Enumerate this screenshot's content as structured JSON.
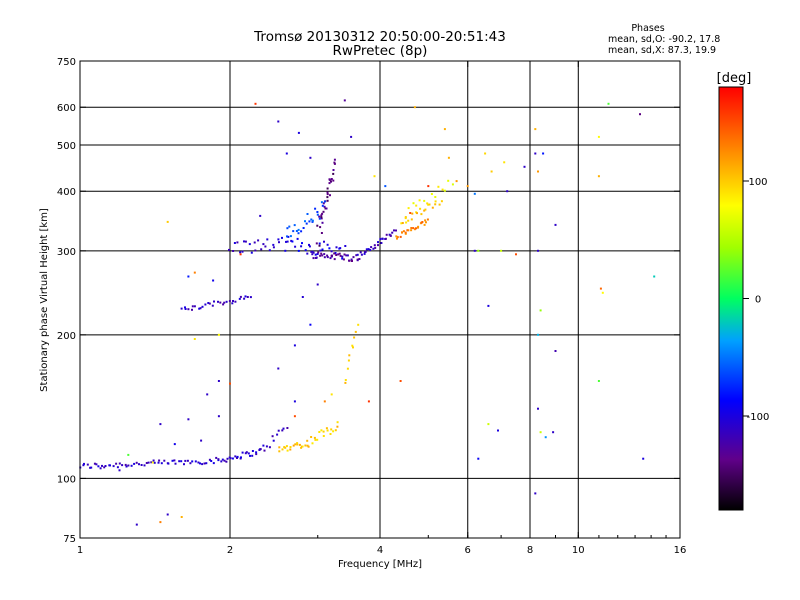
{
  "chart_data": {
    "type": "scatter",
    "title": "Tromsø 20130312 20:50:00-20:51:43",
    "subtitle": "RwPretec (8p)",
    "xlabel": "Frequency [MHz]",
    "ylabel": "Stationary phase Virtual Height [km]",
    "x_scale": "log",
    "y_scale": "log",
    "xlim": [
      1,
      16
    ],
    "ylim": [
      75,
      750
    ],
    "x_ticks": [
      {
        "v": 1,
        "label": "1"
      },
      {
        "v": 2,
        "label": "2"
      },
      {
        "v": 4,
        "label": "4"
      },
      {
        "v": 6,
        "label": "6"
      },
      {
        "v": 8,
        "label": "8"
      },
      {
        "v": 10,
        "label": "10"
      },
      {
        "v": 16,
        "label": "16"
      }
    ],
    "x_grid": [
      2,
      4,
      6,
      8,
      10
    ],
    "y_ticks": [
      {
        "v": 75,
        "label": "75"
      },
      {
        "v": 100,
        "label": "100"
      },
      {
        "v": 200,
        "label": "200"
      },
      {
        "v": 300,
        "label": "300"
      },
      {
        "v": 400,
        "label": "400"
      },
      {
        "v": 500,
        "label": "500"
      },
      {
        "v": 600,
        "label": "600"
      },
      {
        "v": 750,
        "label": "750"
      }
    ],
    "y_grid": [
      100,
      200,
      300,
      400,
      500,
      600
    ],
    "grid": true,
    "phase_stats": {
      "heading": "Phases",
      "line_o": "mean, sd,O: -90.2, 17.8",
      "line_x": "mean, sd,X: 87.3, 19.9"
    },
    "colorbar": {
      "label": "[deg]",
      "range": [
        -180,
        180
      ],
      "ticks": [
        {
          "v": 100,
          "label": "100"
        },
        {
          "v": 0,
          "label": "0"
        },
        {
          "v": -100,
          "label": "-100"
        }
      ]
    },
    "traces": [
      {
        "f1": 1.0,
        "f2": 1.9,
        "h1": 106,
        "h2": 109,
        "n": 60,
        "phase": -110,
        "jh": 1.5
      },
      {
        "f1": 1.9,
        "f2": 2.3,
        "h1": 109,
        "h2": 114,
        "n": 25,
        "phase": -108,
        "jh": 1.5
      },
      {
        "f1": 2.3,
        "f2": 2.6,
        "h1": 114,
        "h2": 128,
        "n": 12,
        "phase": -110,
        "jh": 3
      },
      {
        "f1": 2.5,
        "f2": 2.8,
        "h1": 115,
        "h2": 118,
        "n": 16,
        "phase": 100,
        "jh": 2
      },
      {
        "f1": 2.8,
        "f2": 3.3,
        "h1": 117,
        "h2": 130,
        "n": 22,
        "phase": 100,
        "jh": 3
      },
      {
        "f1": 3.4,
        "f2": 3.6,
        "h1": 160,
        "h2": 210,
        "n": 10,
        "phase": 95,
        "jh": 5
      },
      {
        "f1": 1.6,
        "f2": 2.2,
        "h1": 225,
        "h2": 240,
        "n": 30,
        "phase": -110,
        "jh": 3
      },
      {
        "f1": 2.0,
        "f2": 2.6,
        "h1": 305,
        "h2": 310,
        "n": 25,
        "phase": -110,
        "jh": 10
      },
      {
        "f1": 2.6,
        "f2": 3.4,
        "h1": 310,
        "h2": 300,
        "n": 30,
        "phase": -100,
        "jh": 12
      },
      {
        "f1": 2.9,
        "f2": 3.6,
        "h1": 295,
        "h2": 290,
        "n": 35,
        "phase": -125,
        "jh": 5
      },
      {
        "f1": 3.6,
        "f2": 4.3,
        "h1": 290,
        "h2": 330,
        "n": 30,
        "phase": -115,
        "jh": 5
      },
      {
        "f1": 3.0,
        "f2": 3.25,
        "h1": 320,
        "h2": 460,
        "n": 35,
        "phase": -140,
        "jh": 20
      },
      {
        "f1": 2.6,
        "f2": 3.1,
        "h1": 320,
        "h2": 370,
        "n": 25,
        "phase": -60,
        "jh": 15
      },
      {
        "f1": 4.3,
        "f2": 5.0,
        "h1": 320,
        "h2": 345,
        "n": 25,
        "phase": 130,
        "jh": 5
      },
      {
        "f1": 4.4,
        "f2": 5.3,
        "h1": 345,
        "h2": 385,
        "n": 20,
        "phase": 100,
        "jh": 8
      },
      {
        "f1": 4.5,
        "f2": 5.6,
        "h1": 360,
        "h2": 420,
        "n": 14,
        "phase": 80,
        "jh": 10
      }
    ],
    "points": [
      [
        1.1,
        105,
        -110
      ],
      [
        1.2,
        104,
        -110
      ],
      [
        1.25,
        112,
        20
      ],
      [
        1.3,
        80,
        -110
      ],
      [
        1.4,
        108,
        80
      ],
      [
        1.45,
        81,
        130
      ],
      [
        1.5,
        84,
        -110
      ],
      [
        1.6,
        83,
        110
      ],
      [
        1.55,
        118,
        -95
      ],
      [
        1.5,
        345,
        100
      ],
      [
        1.65,
        265,
        -80
      ],
      [
        1.7,
        270,
        130
      ],
      [
        1.85,
        260,
        -95
      ],
      [
        1.9,
        200,
        80
      ],
      [
        1.7,
        196,
        90
      ],
      [
        1.8,
        150,
        -110
      ],
      [
        1.45,
        130,
        -110
      ],
      [
        2.25,
        610,
        160
      ],
      [
        2.5,
        560,
        -110
      ],
      [
        2.75,
        530,
        -100
      ],
      [
        3.4,
        620,
        -130
      ],
      [
        3.5,
        520,
        -110
      ],
      [
        4.7,
        600,
        110
      ],
      [
        5.4,
        540,
        110
      ],
      [
        5.7,
        420,
        120
      ],
      [
        6.2,
        395,
        -50
      ],
      [
        6.3,
        300,
        40
      ],
      [
        6.6,
        230,
        -100
      ],
      [
        6.5,
        480,
        95
      ],
      [
        6.7,
        440,
        100
      ],
      [
        7.1,
        460,
        90
      ],
      [
        7.2,
        400,
        -110
      ],
      [
        7.0,
        300,
        60
      ],
      [
        7.5,
        295,
        150
      ],
      [
        7.8,
        450,
        -110
      ],
      [
        8.2,
        540,
        110
      ],
      [
        8.2,
        480,
        -110
      ],
      [
        8.3,
        440,
        120
      ],
      [
        8.3,
        300,
        -110
      ],
      [
        8.4,
        225,
        40
      ],
      [
        8.3,
        200,
        -30
      ],
      [
        9.0,
        185,
        -120
      ],
      [
        9.0,
        340,
        -110
      ],
      [
        8.5,
        480,
        -80
      ],
      [
        8.2,
        93,
        -110
      ],
      [
        8.3,
        140,
        -110
      ],
      [
        8.4,
        125,
        60
      ],
      [
        8.6,
        122,
        -40
      ],
      [
        8.9,
        125,
        -110
      ],
      [
        11.0,
        520,
        80
      ],
      [
        11.0,
        430,
        110
      ],
      [
        11.1,
        250,
        140
      ],
      [
        11.2,
        245,
        80
      ],
      [
        11.0,
        160,
        20
      ],
      [
        11.5,
        610,
        20
      ],
      [
        13.3,
        580,
        -140
      ],
      [
        14.2,
        265,
        -20
      ],
      [
        13.5,
        110,
        -100
      ],
      [
        6.3,
        110,
        -90
      ],
      [
        4.4,
        160,
        150
      ],
      [
        6.9,
        126,
        -100
      ],
      [
        6.6,
        130,
        60
      ],
      [
        6.2,
        300,
        -110
      ],
      [
        6.0,
        410,
        120
      ],
      [
        4.1,
        410,
        -60
      ],
      [
        3.9,
        430,
        90
      ],
      [
        2.3,
        355,
        -110
      ],
      [
        2.1,
        295,
        160
      ],
      [
        2.6,
        480,
        -100
      ],
      [
        2.9,
        470,
        -110
      ],
      [
        2.7,
        145,
        -100
      ],
      [
        2.5,
        170,
        -110
      ],
      [
        2.7,
        190,
        -100
      ],
      [
        2.9,
        210,
        -90
      ],
      [
        2.8,
        240,
        -105
      ],
      [
        3.0,
        255,
        -110
      ],
      [
        1.9,
        160,
        -110
      ],
      [
        2.0,
        158,
        150
      ],
      [
        1.9,
        135,
        -110
      ],
      [
        1.65,
        133,
        -110
      ],
      [
        1.75,
        120,
        -110
      ],
      [
        3.2,
        150,
        90
      ],
      [
        3.1,
        145,
        130
      ],
      [
        2.7,
        135,
        150
      ],
      [
        3.8,
        145,
        160
      ],
      [
        4.6,
        360,
        150
      ],
      [
        5.5,
        470,
        110
      ],
      [
        5.0,
        410,
        160
      ]
    ]
  }
}
